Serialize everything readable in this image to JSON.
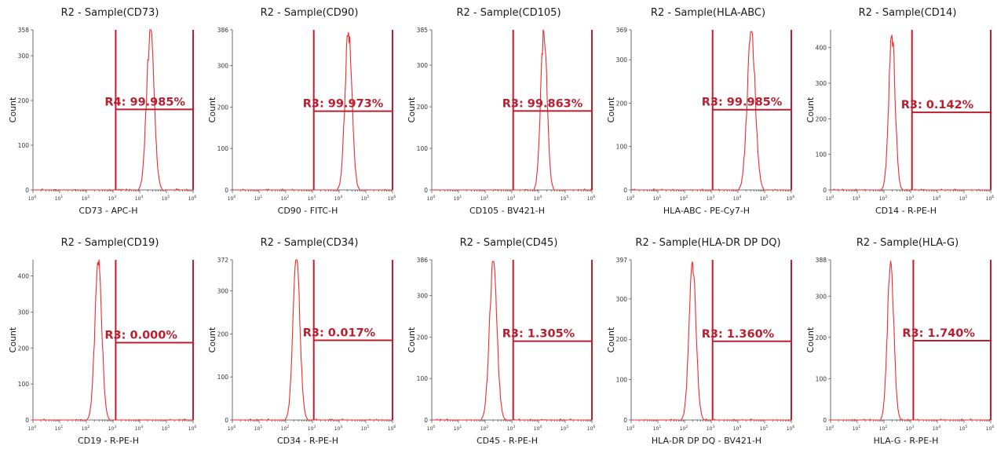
{
  "figure": {
    "colors": {
      "trace": "#ee2a2a",
      "gate": "#b82030",
      "axis": "#444444",
      "text": "#1a1a1a"
    },
    "x_tick_mantissa": "10",
    "x_tick_exponents": [
      "0",
      "1",
      "2",
      "3",
      "4",
      "5",
      "6"
    ]
  },
  "chart_data": [
    {
      "type": "histogram",
      "title": "R2 - Sample(CD73)",
      "xlabel": "CD73 - APC-H",
      "ylabel": "Count",
      "xscale": "log",
      "xlim": [
        1,
        1000000
      ],
      "ylim": [
        0,
        358
      ],
      "yticks": [
        "0",
        "100",
        "200",
        "300",
        "358"
      ],
      "peak": {
        "center_log10": 4.4,
        "width": 0.14,
        "height": 358
      },
      "gate": {
        "name": "R4",
        "percent": "99.985%",
        "label": "R4: 99.985%",
        "start_log10": 3.1,
        "end_log10": 6.0,
        "level": 180
      }
    },
    {
      "type": "histogram",
      "title": "R2 - Sample(CD90)",
      "xlabel": "CD90 - FITC-H",
      "ylabel": "Count",
      "xscale": "log",
      "xlim": [
        1,
        1000000
      ],
      "ylim": [
        0,
        386
      ],
      "yticks": [
        "0",
        "100",
        "200",
        "300",
        "386"
      ],
      "peak": {
        "center_log10": 4.35,
        "width": 0.13,
        "height": 380
      },
      "gate": {
        "name": "R3",
        "percent": "99.973%",
        "label": "R3: 99.973%",
        "start_log10": 3.05,
        "end_log10": 6.0,
        "level": 190
      }
    },
    {
      "type": "histogram",
      "title": "R2 - Sample(CD105)",
      "xlabel": "CD105 - BV421-H",
      "ylabel": "Count",
      "xscale": "log",
      "xlim": [
        1,
        1000000
      ],
      "ylim": [
        0,
        385
      ],
      "yticks": [
        "0",
        "100",
        "200",
        "300",
        "385"
      ],
      "peak": {
        "center_log10": 4.2,
        "width": 0.12,
        "height": 380
      },
      "gate": {
        "name": "R3",
        "percent": "99.863%",
        "label": "R3: 99.863%",
        "start_log10": 3.05,
        "end_log10": 6.0,
        "level": 190
      }
    },
    {
      "type": "histogram",
      "title": "R2 - Sample(HLA-ABC)",
      "xlabel": "HLA-ABC - PE-Cy7-H",
      "ylabel": "Count",
      "xscale": "log",
      "xlim": [
        1,
        1000000
      ],
      "ylim": [
        0,
        369
      ],
      "yticks": [
        "0",
        "100",
        "200",
        "300",
        "369"
      ],
      "peak": {
        "center_log10": 4.5,
        "width": 0.15,
        "height": 365
      },
      "gate": {
        "name": "R3",
        "percent": "99.985%",
        "label": "R3: 99.985%",
        "start_log10": 3.05,
        "end_log10": 6.0,
        "level": 185
      }
    },
    {
      "type": "histogram",
      "title": "R2 - Sample(CD14)",
      "xlabel": "CD14 - R-PE-H",
      "ylabel": "Count",
      "xscale": "log",
      "xlim": [
        1,
        1000000
      ],
      "ylim": [
        0,
        450
      ],
      "yticks": [
        "0",
        "100",
        "200",
        "300",
        "400"
      ],
      "peak": {
        "center_log10": 2.3,
        "width": 0.12,
        "height": 435
      },
      "gate": {
        "name": "R3",
        "percent": "0.142%",
        "label": "R3: 0.142%",
        "start_log10": 3.05,
        "end_log10": 6.0,
        "level": 218
      }
    },
    {
      "type": "histogram",
      "title": "R2 - Sample(CD19)",
      "xlabel": "CD19 - R-PE-H",
      "ylabel": "Count",
      "xscale": "log",
      "xlim": [
        1,
        1000000
      ],
      "ylim": [
        0,
        445
      ],
      "yticks": [
        "0",
        "100",
        "200",
        "300",
        "400"
      ],
      "peak": {
        "center_log10": 2.45,
        "width": 0.13,
        "height": 430
      },
      "gate": {
        "name": "R3",
        "percent": "0.000%",
        "label": "R3: 0.000%",
        "start_log10": 3.1,
        "end_log10": 6.0,
        "level": 215
      }
    },
    {
      "type": "histogram",
      "title": "R2 - Sample(CD34)",
      "xlabel": "CD34 - R-PE-H",
      "ylabel": "Count",
      "xscale": "log",
      "xlim": [
        1,
        1000000
      ],
      "ylim": [
        0,
        372
      ],
      "yticks": [
        "0",
        "100",
        "200",
        "300",
        "372"
      ],
      "peak": {
        "center_log10": 2.4,
        "width": 0.13,
        "height": 372
      },
      "gate": {
        "name": "R3",
        "percent": "0.017%",
        "label": "R3: 0.017%",
        "start_log10": 3.05,
        "end_log10": 6.0,
        "level": 185
      }
    },
    {
      "type": "histogram",
      "title": "R2 - Sample(CD45)",
      "xlabel": "CD45 - R-PE-H",
      "ylabel": "Count",
      "xscale": "log",
      "xlim": [
        1,
        1000000
      ],
      "ylim": [
        0,
        386
      ],
      "yticks": [
        "0",
        "100",
        "200",
        "300",
        "386"
      ],
      "peak": {
        "center_log10": 2.3,
        "width": 0.14,
        "height": 382
      },
      "gate": {
        "name": "R3",
        "percent": "1.305%",
        "label": "R3: 1.305%",
        "start_log10": 3.05,
        "end_log10": 6.0,
        "level": 190
      }
    },
    {
      "type": "histogram",
      "title": "R2 - Sample(HLA-DR DP DQ)",
      "xlabel": "HLA-DR DP DQ - BV421-H",
      "ylabel": "Count",
      "xscale": "log",
      "xlim": [
        1,
        1000000
      ],
      "ylim": [
        0,
        397
      ],
      "yticks": [
        "0",
        "100",
        "200",
        "300",
        "397"
      ],
      "peak": {
        "center_log10": 2.3,
        "width": 0.13,
        "height": 392
      },
      "gate": {
        "name": "R3",
        "percent": "1.360%",
        "label": "R3: 1.360%",
        "start_log10": 3.05,
        "end_log10": 6.0,
        "level": 195
      }
    },
    {
      "type": "histogram",
      "title": "R2 - Sample(HLA-G)",
      "xlabel": "HLA-G - R-PE-H",
      "ylabel": "Count",
      "xscale": "log",
      "xlim": [
        1,
        1000000
      ],
      "ylim": [
        0,
        388
      ],
      "yticks": [
        "0",
        "100",
        "200",
        "300",
        "388"
      ],
      "peak": {
        "center_log10": 2.25,
        "width": 0.12,
        "height": 385
      },
      "gate": {
        "name": "R3",
        "percent": "1.740%",
        "label": "R3: 1.740%",
        "start_log10": 3.1,
        "end_log10": 6.0,
        "level": 192
      }
    }
  ]
}
